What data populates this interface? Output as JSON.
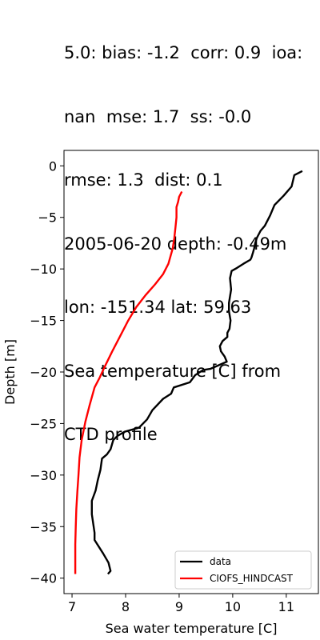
{
  "title_lines": [
    "5.0: bias: -1.2  corr: 0.9  ioa:",
    "nan  mse: 1.7  ss: -0.0",
    "rmse: 1.3  dist: 0.1",
    "2005-06-20 depth: -0.49m",
    "lon: -151.34 lat: 59.63",
    "Sea temperature [C] from",
    "CTD profile"
  ],
  "chart_data": {
    "type": "line",
    "xlabel": "Sea water temperature [C]",
    "ylabel": "Depth [m]",
    "xlim": [
      6.85,
      11.6
    ],
    "ylim": [
      -41.5,
      1.5
    ],
    "xticks": [
      7,
      8,
      9,
      10,
      11
    ],
    "yticks": [
      0,
      -5,
      -10,
      -15,
      -20,
      -25,
      -30,
      -35,
      -40
    ],
    "ytick_labels": [
      "0",
      "−5",
      "−10",
      "−15",
      "−20",
      "−25",
      "−30",
      "−35",
      "−40"
    ],
    "grid": false,
    "legend_position": "lower-right",
    "series": [
      {
        "name": "data",
        "color": "#000000",
        "x": [
          11.3,
          11.15,
          11.1,
          10.95,
          10.78,
          10.7,
          10.6,
          10.52,
          10.45,
          10.42,
          10.4,
          10.38,
          10.35,
          10.33,
          10.2,
          10.08,
          9.98,
          9.95,
          9.97,
          9.93,
          9.93,
          9.96,
          9.94,
          9.9,
          9.9,
          9.81,
          9.76,
          9.78,
          9.85,
          9.89,
          9.58,
          9.45,
          9.3,
          9.2,
          8.9,
          8.85,
          8.7,
          8.5,
          8.4,
          8.25,
          7.98,
          7.85,
          7.77,
          7.72,
          7.65,
          7.56,
          7.53,
          7.48,
          7.44,
          7.37,
          7.37,
          7.42,
          7.42,
          7.58,
          7.68,
          7.72,
          7.67
        ],
        "y": [
          -0.5,
          -0.9,
          -2.0,
          -2.9,
          -3.8,
          -4.8,
          -5.8,
          -6.3,
          -7.0,
          -7.5,
          -8.0,
          -8.4,
          -8.9,
          -9.1,
          -9.5,
          -9.9,
          -10.2,
          -10.9,
          -12.0,
          -13.3,
          -14.1,
          -15.0,
          -15.8,
          -16.2,
          -16.6,
          -17.0,
          -17.5,
          -18.0,
          -18.5,
          -19.0,
          -19.7,
          -19.8,
          -20.3,
          -21.0,
          -21.5,
          -22.1,
          -22.6,
          -23.7,
          -24.6,
          -25.4,
          -25.8,
          -26.2,
          -26.6,
          -27.5,
          -28.0,
          -28.4,
          -29.5,
          -30.5,
          -31.5,
          -32.5,
          -33.8,
          -35.6,
          -36.3,
          -37.6,
          -38.5,
          -39.3,
          -39.6
        ]
      },
      {
        "name": "CIOFS_HINDCAST",
        "color": "#ff0000",
        "x": [
          9.05,
          9.0,
          8.98,
          8.95,
          8.95,
          8.93,
          8.91,
          8.88,
          8.8,
          8.7,
          8.55,
          8.38,
          8.2,
          8.05,
          7.9,
          7.75,
          7.6,
          7.52,
          7.42,
          7.33,
          7.25,
          7.18,
          7.14,
          7.12,
          7.1,
          7.08,
          7.07,
          7.06,
          7.06,
          7.06
        ],
        "y": [
          -2.5,
          -3.0,
          -3.5,
          -4.0,
          -5.0,
          -6.0,
          -7.0,
          -8.0,
          -9.5,
          -10.5,
          -11.5,
          -12.5,
          -13.7,
          -15.0,
          -16.5,
          -18.0,
          -19.6,
          -20.5,
          -21.5,
          -23.2,
          -24.8,
          -26.6,
          -28.3,
          -30.0,
          -31.6,
          -33.3,
          -35.0,
          -36.7,
          -38.4,
          -39.6
        ]
      }
    ]
  }
}
